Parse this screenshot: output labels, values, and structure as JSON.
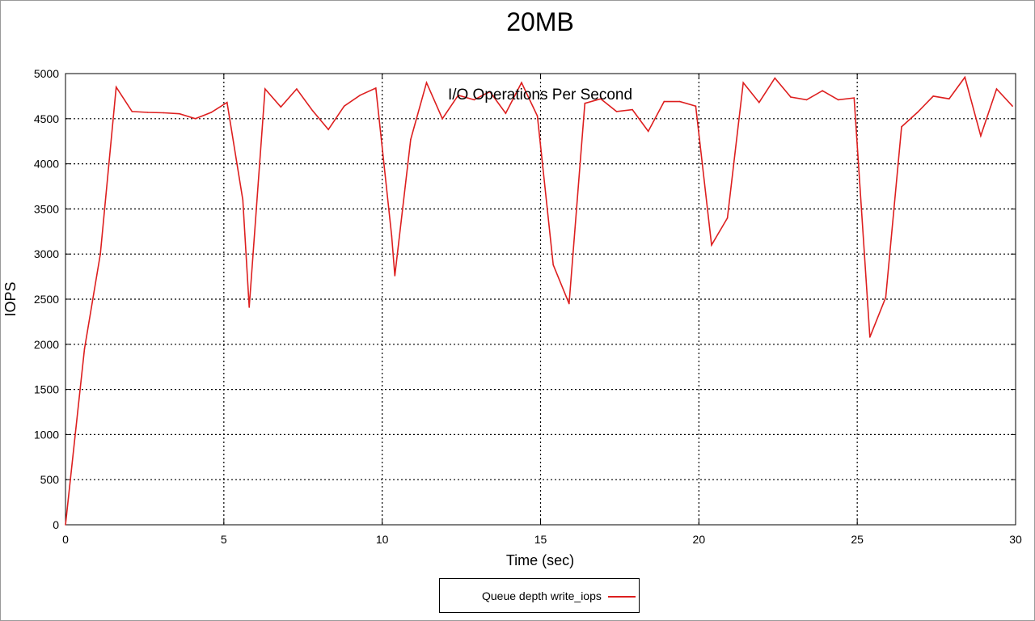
{
  "chart_data": {
    "type": "line",
    "title": "20MB",
    "subtitle": "I/O Operations Per Second",
    "xlabel": "Time (sec)",
    "ylabel": "IOPS",
    "xlim": [
      0,
      30
    ],
    "ylim": [
      0,
      5000
    ],
    "xticks": [
      0,
      5,
      10,
      15,
      20,
      25,
      30
    ],
    "yticks": [
      0,
      500,
      1000,
      1500,
      2000,
      2500,
      3000,
      3500,
      4000,
      4500,
      5000
    ],
    "grid": true,
    "legend_position": "bottom-center",
    "series": [
      {
        "name": "Queue depth write_iops",
        "color": "#dd1f1f",
        "x": [
          0,
          0.6,
          1.1,
          1.6,
          2.1,
          2.6,
          3.1,
          3.6,
          4.1,
          4.6,
          5.1,
          5.6,
          5.8,
          6.3,
          6.8,
          7.3,
          7.8,
          8.3,
          8.8,
          9.3,
          9.8,
          10.3,
          10.4,
          10.9,
          11.4,
          11.9,
          12.4,
          12.9,
          13.4,
          13.9,
          14.4,
          14.9,
          15.4,
          15.9,
          16.4,
          16.9,
          17.4,
          17.9,
          18.4,
          18.9,
          19.4,
          19.9,
          20.4,
          20.9,
          21.4,
          21.9,
          22.4,
          22.9,
          23.4,
          23.9,
          24.4,
          24.9,
          25.4,
          25.9,
          26.4,
          26.9,
          27.4,
          27.9,
          28.4,
          28.9,
          29.4,
          29.9
        ],
        "y": [
          0,
          1950,
          3000,
          4850,
          4580,
          4570,
          4565,
          4555,
          4500,
          4570,
          4680,
          3600,
          2410,
          4830,
          4630,
          4830,
          4590,
          4380,
          4640,
          4760,
          4840,
          3200,
          2760,
          4270,
          4900,
          4500,
          4760,
          4710,
          4800,
          4560,
          4900,
          4530,
          2880,
          2450,
          4670,
          4720,
          4580,
          4600,
          4360,
          4690,
          4690,
          4640,
          3100,
          3400,
          4900,
          4680,
          4950,
          4740,
          4710,
          4810,
          4710,
          4730,
          2080,
          2520,
          4410,
          4570,
          4750,
          4720,
          4960,
          4310,
          4830,
          4640
        ]
      }
    ]
  }
}
